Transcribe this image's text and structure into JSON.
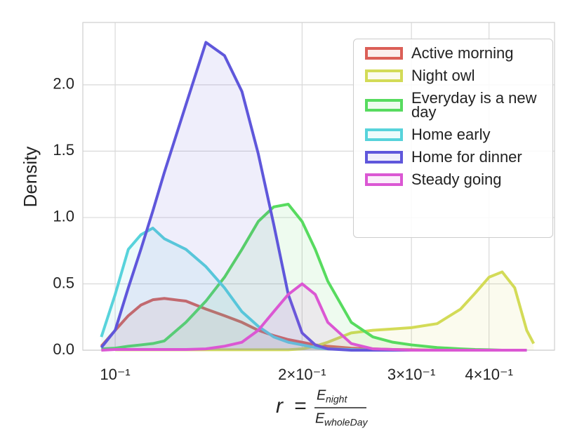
{
  "chart_data": {
    "type": "area",
    "xscale": "log",
    "ylabel": "Density",
    "x_label": {
      "variable": "r",
      "equals": "=",
      "numerator": "E",
      "numerator_subscript": "night",
      "denominator": "E",
      "denominator_subscript": "wholeDay"
    },
    "xlim": [
      0.0887,
      0.51
    ],
    "ylim": [
      0,
      2.47
    ],
    "xticks": [
      {
        "value": 0.1,
        "label": "10⁻¹"
      },
      {
        "value": 0.2,
        "label": "2×10⁻¹"
      },
      {
        "value": 0.3,
        "label": "3×10⁻¹"
      },
      {
        "value": 0.4,
        "label": "4×10⁻¹"
      }
    ],
    "yticks": [
      {
        "value": 0,
        "label": "0.0"
      },
      0.5,
      {
        "value": 1,
        "label": "1.0"
      },
      1.5,
      {
        "value": 2,
        "label": "2.0"
      }
    ],
    "grid": true,
    "legend": "upper right",
    "x": [
      0.095,
      0.1,
      0.105,
      0.11,
      0.115,
      0.12,
      0.13,
      0.14,
      0.15,
      0.16,
      0.17,
      0.18,
      0.19,
      0.2,
      0.21,
      0.22,
      0.24,
      0.26,
      0.28,
      0.3,
      0.33,
      0.36,
      0.38,
      0.4,
      0.42,
      0.44,
      0.46,
      0.472
    ],
    "series": [
      {
        "name": "Active morning",
        "color": "#db5f57",
        "values": [
          0.03,
          0.15,
          0.26,
          0.34,
          0.38,
          0.39,
          0.37,
          0.31,
          0.26,
          0.21,
          0.15,
          0.11,
          0.08,
          0.06,
          0.04,
          0.03,
          0.015,
          0.01,
          0.005,
          0.003,
          0,
          0,
          0,
          0,
          0,
          0,
          0,
          null
        ]
      },
      {
        "name": "Night owl",
        "color": "#d3db57",
        "values": [
          null,
          0.003,
          0.003,
          0.003,
          0.003,
          0.003,
          0.003,
          0.003,
          0.003,
          0.003,
          0.003,
          0.003,
          0.003,
          0.01,
          0.03,
          0.06,
          0.13,
          0.15,
          0.16,
          0.17,
          0.2,
          0.31,
          0.43,
          0.55,
          0.59,
          0.47,
          0.15,
          0.05
        ]
      },
      {
        "name": "Everyday is a new day",
        "color": "#57db5f",
        "values": [
          0.01,
          0.015,
          0.03,
          0.04,
          0.05,
          0.07,
          0.21,
          0.37,
          0.55,
          0.76,
          0.97,
          1.08,
          1.1,
          0.97,
          0.76,
          0.52,
          0.21,
          0.1,
          0.06,
          0.04,
          0.02,
          0.01,
          0.005,
          0.003,
          0,
          0,
          0,
          null
        ]
      },
      {
        "name": "Home early",
        "color": "#57d3db",
        "values": [
          0.1,
          0.42,
          0.76,
          0.87,
          0.92,
          0.84,
          0.76,
          0.63,
          0.47,
          0.29,
          0.18,
          0.1,
          0.06,
          0.04,
          0.02,
          0.01,
          0.005,
          0,
          0,
          0,
          0,
          0,
          0,
          0,
          0,
          0,
          0,
          null
        ]
      },
      {
        "name": "Home for dinner",
        "color": "#5f57db",
        "values": [
          0.02,
          0.15,
          0.47,
          0.76,
          1.05,
          1.34,
          1.85,
          2.32,
          2.22,
          1.95,
          1.48,
          0.95,
          0.42,
          0.13,
          0.04,
          0.01,
          0,
          0,
          0,
          0,
          0,
          0,
          0,
          0,
          0,
          0,
          0,
          null
        ]
      },
      {
        "name": "Steady going",
        "color": "#db57d3",
        "values": [
          0,
          0.005,
          0.005,
          0.005,
          0.005,
          0.005,
          0.005,
          0.01,
          0.03,
          0.06,
          0.15,
          0.29,
          0.42,
          0.5,
          0.42,
          0.21,
          0.05,
          0.01,
          0.005,
          0,
          0,
          0,
          0,
          0,
          0,
          0,
          0,
          null
        ]
      }
    ]
  }
}
